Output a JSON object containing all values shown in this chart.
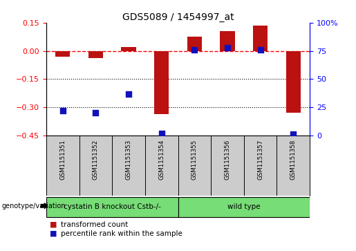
{
  "title": "GDS5089 / 1454997_at",
  "samples": [
    "GSM1151351",
    "GSM1151352",
    "GSM1151353",
    "GSM1151354",
    "GSM1151355",
    "GSM1151356",
    "GSM1151357",
    "GSM1151358"
  ],
  "transformed_count": [
    -0.03,
    -0.04,
    0.02,
    -0.335,
    0.075,
    0.105,
    0.135,
    -0.33
  ],
  "percentile_rank": [
    22,
    20,
    37,
    2,
    76,
    78,
    76,
    1
  ],
  "groups": [
    {
      "label": "cystatin B knockout Cstb-/-",
      "samples": [
        0,
        1,
        2,
        3
      ],
      "color": "#77dd77"
    },
    {
      "label": "wild type",
      "samples": [
        4,
        5,
        6,
        7
      ],
      "color": "#77dd77"
    }
  ],
  "left_ylim": [
    -0.45,
    0.15
  ],
  "left_yticks": [
    0.15,
    0,
    -0.15,
    -0.3,
    -0.45
  ],
  "right_ylim": [
    0,
    100
  ],
  "right_yticks": [
    0,
    25,
    50,
    75,
    100
  ],
  "right_yticklabels": [
    "0",
    "25",
    "50",
    "75",
    "100%"
  ],
  "bar_color": "#bb1111",
  "dot_color": "#1111bb",
  "hline_y": 0,
  "dotted_lines": [
    -0.15,
    -0.3
  ],
  "bar_width": 0.45,
  "dot_size": 40,
  "legend_bar_label": "transformed count",
  "legend_dot_label": "percentile rank within the sample",
  "group_row_label": "genotype/variation",
  "sample_bg": "#cccccc",
  "plot_bg": "#ffffff"
}
